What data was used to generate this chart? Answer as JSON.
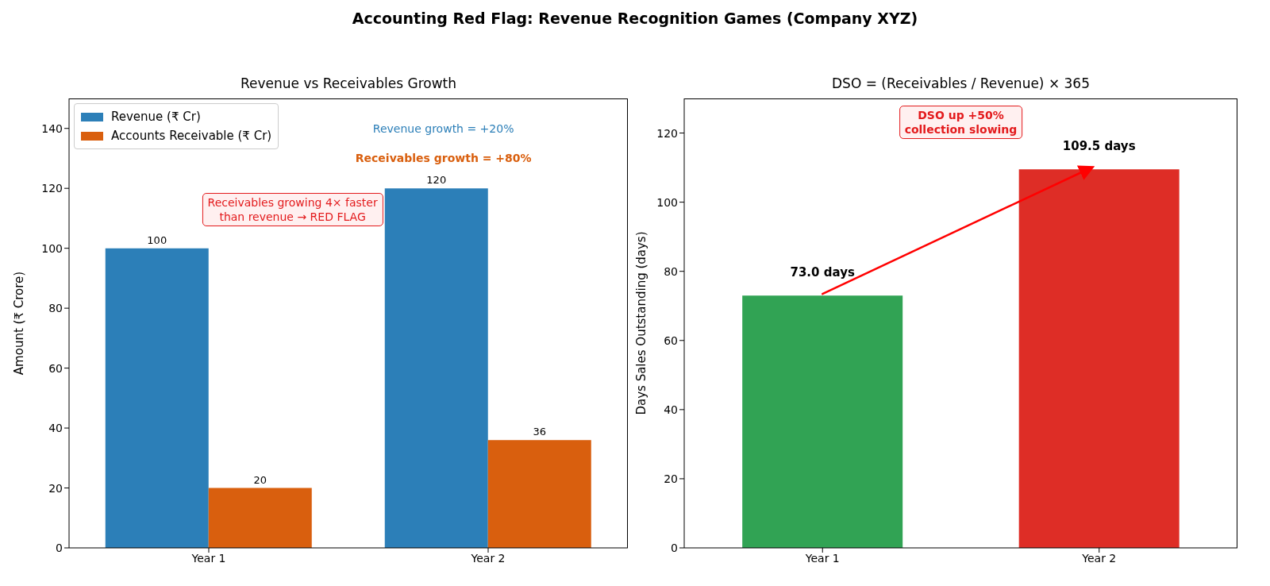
{
  "chart_data": [
    {
      "type": "bar",
      "title": "Revenue vs Receivables Growth",
      "ylabel": "Amount (₹ Crore)",
      "categories": [
        "Year 1",
        "Year 2"
      ],
      "series": [
        {
          "name": "Revenue (₹ Cr)",
          "color": "#2c7fb8",
          "values": [
            100,
            120
          ]
        },
        {
          "name": "Accounts Receivable (₹ Cr)",
          "color": "#d95f0e",
          "values": [
            20,
            36
          ]
        }
      ],
      "ylim": [
        0,
        150
      ],
      "yticks": [
        0,
        20,
        40,
        60,
        80,
        100,
        120,
        140
      ],
      "data_labels": true,
      "legend": "top left",
      "annotations": [
        "Accounting Red Flag: Revenue Recognition Games (Company XYZ)",
        "Revenue growth = +20%",
        "Receivables growth = +80%",
        "Receivables growing 4× faster\nthan revenue → RED FLAG"
      ]
    },
    {
      "type": "bar",
      "title": "DSO = (Receivables / Revenue) × 365",
      "ylabel": "Days Sales Outstanding (days)",
      "categories": [
        "Year 1",
        "Year 2"
      ],
      "values": [
        73.0,
        109.5
      ],
      "colors": [
        "#31a354",
        "#de2d26"
      ],
      "value_labels": [
        "73.0 days",
        "109.5 days"
      ],
      "ylim": [
        0,
        130
      ],
      "yticks": [
        0,
        20,
        40,
        60,
        80,
        100,
        120
      ],
      "annotations": [
        "DSO up +50%\ncollection slowing"
      ]
    }
  ]
}
